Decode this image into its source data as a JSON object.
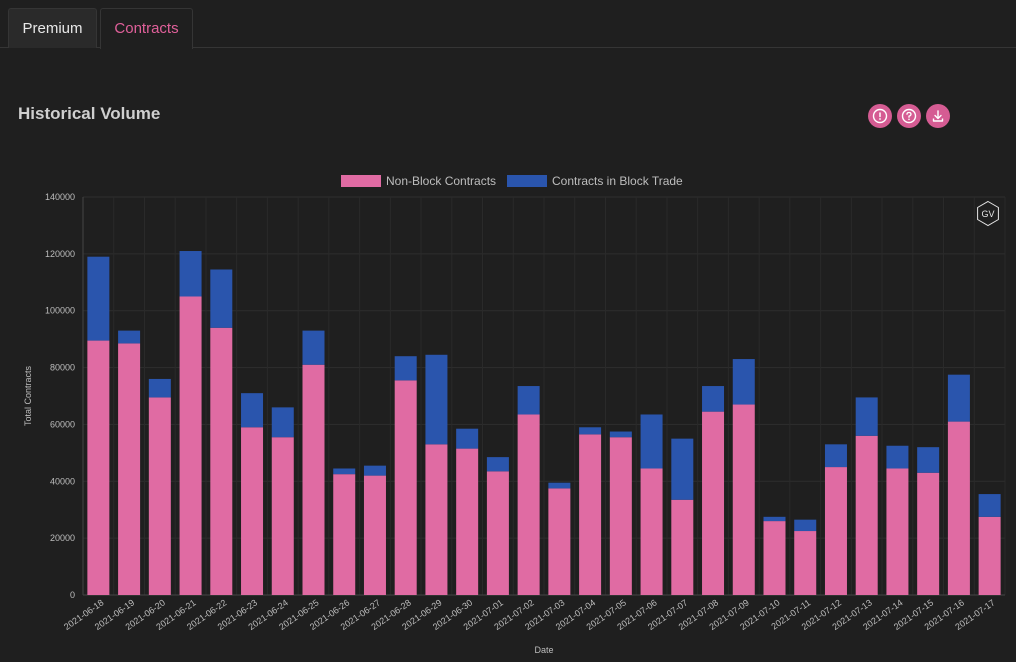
{
  "tabs": [
    {
      "label": "Premium",
      "active": false
    },
    {
      "label": "Contracts",
      "active": true
    }
  ],
  "panel": {
    "title": "Historical Volume",
    "actions": [
      {
        "icon": "info-icon"
      },
      {
        "icon": "help-icon"
      },
      {
        "icon": "download-icon"
      }
    ]
  },
  "colors": {
    "background": "#1f1f1f",
    "accent": "#e0609a",
    "non_block": "#e06ba3",
    "block": "#2a55ad"
  },
  "chart_data": {
    "type": "bar",
    "stacked": true,
    "xlabel": "Date",
    "ylabel": "Total Contracts",
    "ylim": [
      0,
      140000
    ],
    "yticks": [
      "0",
      "20000",
      "40000",
      "60000",
      "80000",
      "100000",
      "120000",
      "140000"
    ],
    "legend_position": "top",
    "grid": true,
    "watermark": "GV",
    "categories": [
      "2021-06-18",
      "2021-06-19",
      "2021-06-20",
      "2021-06-21",
      "2021-06-22",
      "2021-06-23",
      "2021-06-24",
      "2021-06-25",
      "2021-06-26",
      "2021-06-27",
      "2021-06-28",
      "2021-06-29",
      "2021-06-30",
      "2021-07-01",
      "2021-07-02",
      "2021-07-03",
      "2021-07-04",
      "2021-07-05",
      "2021-07-06",
      "2021-07-07",
      "2021-07-08",
      "2021-07-09",
      "2021-07-10",
      "2021-07-11",
      "2021-07-12",
      "2021-07-13",
      "2021-07-14",
      "2021-07-15",
      "2021-07-16",
      "2021-07-17"
    ],
    "series": [
      {
        "name": "Non-Block Contracts",
        "color": "#e06ba3",
        "values": [
          89500,
          88500,
          69500,
          105000,
          94000,
          59000,
          55500,
          81000,
          42500,
          42000,
          75500,
          53000,
          51500,
          43500,
          63500,
          37500,
          56500,
          55500,
          44500,
          33500,
          64500,
          67000,
          26000,
          22500,
          45000,
          56000,
          44500,
          43000,
          61000,
          27500
        ]
      },
      {
        "name": "Contracts in Block Trade",
        "color": "#2a55ad",
        "values": [
          29500,
          4500,
          6500,
          16000,
          20500,
          12000,
          10500,
          12000,
          2000,
          3500,
          8500,
          31500,
          7000,
          5000,
          10000,
          2000,
          2500,
          2000,
          19000,
          21500,
          9000,
          16000,
          1500,
          4000,
          8000,
          13500,
          8000,
          9000,
          16500,
          8000
        ]
      }
    ]
  }
}
